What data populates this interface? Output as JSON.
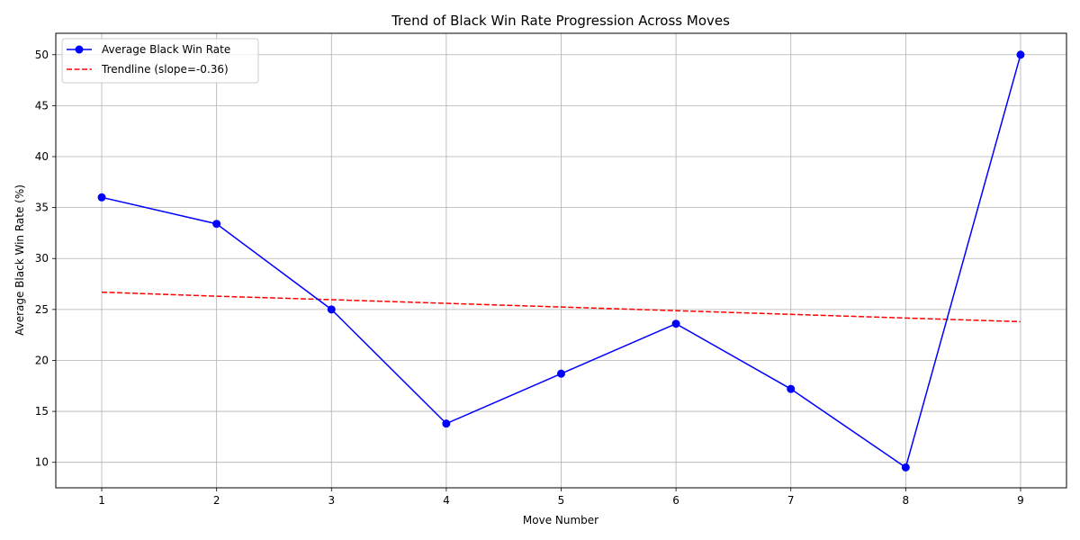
{
  "chart_data": {
    "type": "line",
    "title": "Trend of Black Win Rate Progression Across Moves",
    "xlabel": "Move Number",
    "ylabel": "Average Black Win Rate (%)",
    "x": [
      1,
      2,
      3,
      4,
      5,
      6,
      7,
      8,
      9
    ],
    "xticks": [
      "1",
      "2",
      "3",
      "4",
      "5",
      "6",
      "7",
      "8",
      "9"
    ],
    "yticks": [
      "10",
      "15",
      "20",
      "25",
      "30",
      "35",
      "40",
      "45",
      "50"
    ],
    "xlim": [
      0.6,
      9.4
    ],
    "ylim": [
      7.5,
      52.1
    ],
    "grid": true,
    "legend_position": "top-left",
    "series": [
      {
        "name": "Average Black Win Rate",
        "kind": "line-marker",
        "color": "#0000ff",
        "values": [
          36.0,
          33.4,
          25.0,
          13.8,
          18.7,
          23.6,
          17.2,
          9.5,
          50.0
        ]
      },
      {
        "name": "Trendline (slope=-0.36)",
        "kind": "dashed",
        "color": "#ff0000",
        "values": [
          26.7,
          26.3,
          25.96,
          25.6,
          25.24,
          24.88,
          24.52,
          24.16,
          23.8
        ]
      }
    ]
  }
}
